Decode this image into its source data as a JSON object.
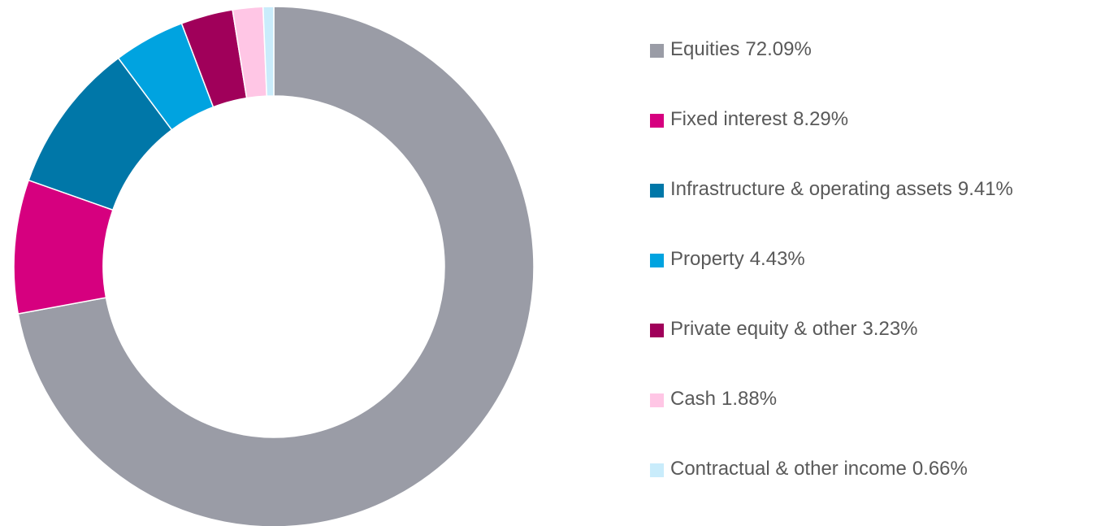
{
  "chart_data": {
    "type": "pie",
    "categories": [
      "Equities",
      "Fixed interest",
      "Infrastructure & operating assets",
      "Property",
      "Private equity & other",
      "Cash",
      "Contractual & other income"
    ],
    "values": [
      72.09,
      8.29,
      9.41,
      4.43,
      3.23,
      1.88,
      0.66
    ],
    "value_labels": [
      "72.09%",
      "8.29%",
      "9.41%",
      "4.43%",
      "3.23%",
      "1.88%",
      "0.66%"
    ],
    "colors": [
      "#9a9ca6",
      "#d6007f",
      "#0077a8",
      "#00a3e0",
      "#a0005a",
      "#ffc6e5",
      "#c9ecfb"
    ],
    "legend": "right"
  }
}
